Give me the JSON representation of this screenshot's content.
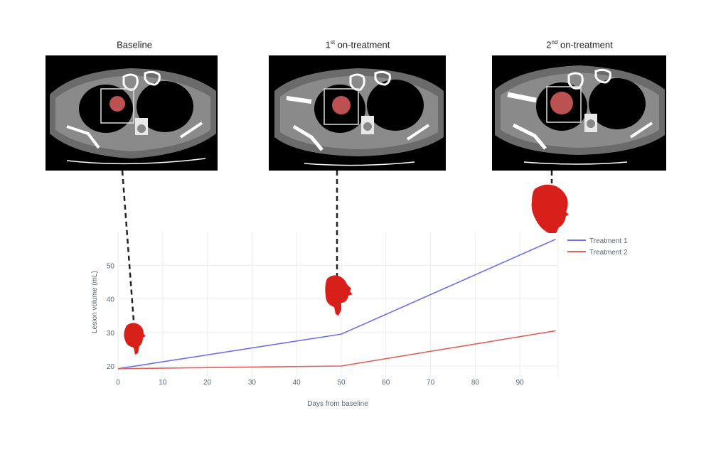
{
  "panels": [
    {
      "title_main": "Baseline",
      "title_sup": "",
      "title_rest": "",
      "timepoint_day": 3
    },
    {
      "title_main": "1",
      "title_sup": "st",
      "title_rest": " on-treatment",
      "timepoint_day": 49
    },
    {
      "title_main": "2",
      "title_sup": "nd",
      "title_rest": " on-treatment",
      "timepoint_day": 97
    }
  ],
  "colors": {
    "treatment1": "#6b6ff0",
    "treatment2": "#e0605a",
    "tumor": "#e0201a",
    "grid": "#eceef3",
    "axis_text": "#5a6577"
  },
  "chart_data": {
    "type": "line",
    "title": "",
    "xlabel": "Days from baseline",
    "ylabel": "Lesion volume (mL)",
    "xlim": [
      0,
      99
    ],
    "ylim": [
      18,
      60
    ],
    "x_ticks": [
      0,
      10,
      20,
      30,
      40,
      50,
      60,
      70,
      80,
      90
    ],
    "y_ticks": [
      20,
      30,
      40,
      50
    ],
    "grid": true,
    "legend_position": "right-top",
    "x": [
      0,
      50,
      98
    ],
    "series": [
      {
        "name": "Treatment 1",
        "values": [
          19.2,
          29.5,
          57.8
        ]
      },
      {
        "name": "Treatment 2",
        "values": [
          19.2,
          20.0,
          30.5
        ]
      }
    ]
  }
}
